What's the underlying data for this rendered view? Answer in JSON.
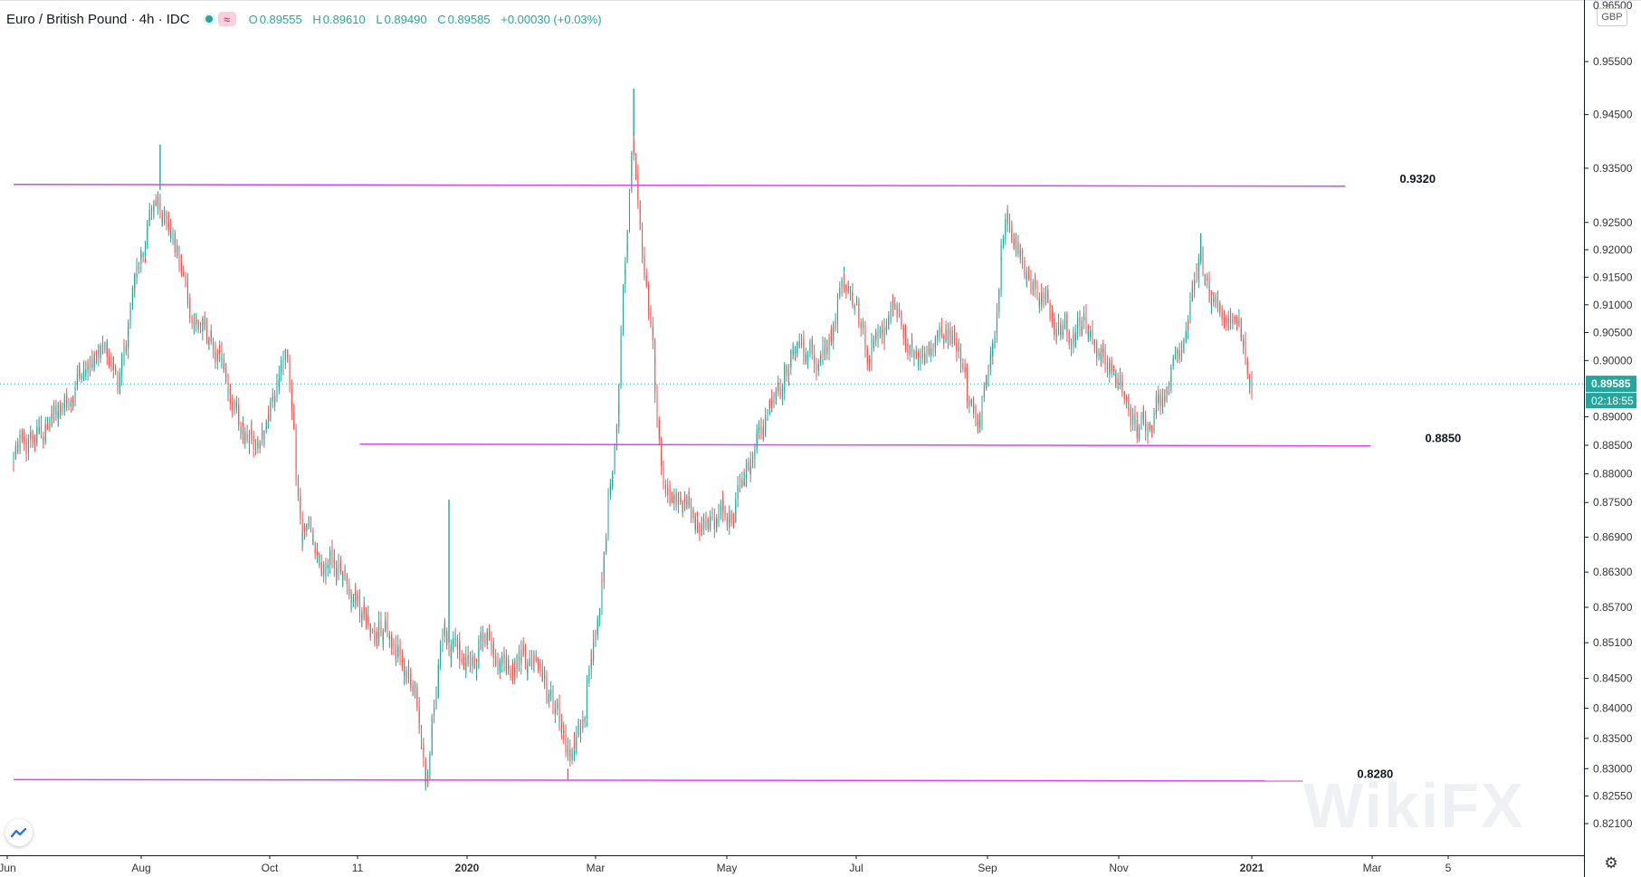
{
  "legend": {
    "title": "Euro / British Pound · 4h · IDC",
    "o_label": "O",
    "o_value": "0.89555",
    "h_label": "H",
    "h_value": "0.89610",
    "l_label": "L",
    "l_value": "0.89490",
    "c_label": "C",
    "c_value": "0.89585",
    "change": "+0.00030 (+0.03%)",
    "wave_icon": "≈"
  },
  "currency_badge": "GBP",
  "watermark": "WikiFX",
  "colors": {
    "up": "#26a69a",
    "down": "#ef5350",
    "level_line": "#e040fb",
    "price_tag": "#26a69a",
    "axis_text": "#5d606b"
  },
  "chart_data": {
    "type": "candlestick",
    "symbol": "Euro / British Pound",
    "timeframe": "4h",
    "source": "IDC",
    "y_scale": "log",
    "ylim": [
      0.8175,
      0.966
    ],
    "y_ticks": [
      "0.95500",
      "0.94500",
      "0.93500",
      "0.92500",
      "0.92000",
      "0.91500",
      "0.91000",
      "0.90500",
      "0.90000",
      "0.89000",
      "0.88500",
      "0.88000",
      "0.87500",
      "0.86900",
      "0.86300",
      "0.85700",
      "0.85100",
      "0.84500",
      "0.84000",
      "0.83500",
      "0.83000",
      "0.82550",
      "0.82100"
    ],
    "y_tick_values": [
      0.955,
      0.945,
      0.935,
      0.925,
      0.92,
      0.915,
      0.91,
      0.905,
      0.9,
      0.89,
      0.885,
      0.88,
      0.875,
      0.869,
      0.863,
      0.857,
      0.851,
      0.845,
      0.84,
      0.835,
      0.83,
      0.8255,
      0.821
    ],
    "y_top_partial_label": "0.96500",
    "x_ticks": [
      "Jun",
      "Aug",
      "Oct",
      "11",
      "2020",
      "Mar",
      "May",
      "Jul",
      "Sep",
      "Nov",
      "2021",
      "Mar",
      "5"
    ],
    "x_tick_bold": [
      false,
      false,
      false,
      false,
      true,
      false,
      false,
      false,
      false,
      false,
      true,
      false,
      false
    ],
    "date_range": [
      "2019-06-01",
      "2021-01-04"
    ],
    "price_path": [
      [
        "2019-06-01",
        0.882
      ],
      [
        "2019-06-20",
        0.889
      ],
      [
        "2019-07-01",
        0.897
      ],
      [
        "2019-07-15",
        0.901
      ],
      [
        "2019-07-22",
        0.896
      ],
      [
        "2019-07-30",
        0.917
      ],
      [
        "2019-08-09",
        0.931
      ],
      [
        "2019-08-15",
        0.923
      ],
      [
        "2019-08-25",
        0.908
      ],
      [
        "2019-09-03",
        0.903
      ],
      [
        "2019-09-12",
        0.892
      ],
      [
        "2019-09-20",
        0.884
      ],
      [
        "2019-09-28",
        0.889
      ],
      [
        "2019-10-08",
        0.901
      ],
      [
        "2019-10-15",
        0.872
      ],
      [
        "2019-10-22",
        0.864
      ],
      [
        "2019-11-05",
        0.864
      ],
      [
        "2019-11-15",
        0.856
      ],
      [
        "2019-11-25",
        0.853
      ],
      [
        "2019-12-06",
        0.843
      ],
      [
        "2019-12-13",
        0.829
      ],
      [
        "2019-12-20",
        0.851
      ],
      [
        "2020-01-01",
        0.849
      ],
      [
        "2020-01-10",
        0.852
      ],
      [
        "2020-01-22",
        0.845
      ],
      [
        "2020-02-03",
        0.849
      ],
      [
        "2020-02-10",
        0.84
      ],
      [
        "2020-02-18",
        0.83
      ],
      [
        "2020-02-25",
        0.836
      ],
      [
        "2020-03-05",
        0.863
      ],
      [
        "2020-03-12",
        0.889
      ],
      [
        "2020-03-19",
        0.941
      ],
      [
        "2020-03-25",
        0.913
      ],
      [
        "2020-04-03",
        0.879
      ],
      [
        "2020-04-12",
        0.876
      ],
      [
        "2020-04-20",
        0.872
      ],
      [
        "2020-05-01",
        0.873
      ],
      [
        "2020-05-12",
        0.882
      ],
      [
        "2020-05-25",
        0.894
      ],
      [
        "2020-06-05",
        0.902
      ],
      [
        "2020-06-15",
        0.902
      ],
      [
        "2020-06-29",
        0.913
      ],
      [
        "2020-07-08",
        0.9
      ],
      [
        "2020-07-20",
        0.91
      ],
      [
        "2020-08-01",
        0.899
      ],
      [
        "2020-08-15",
        0.906
      ],
      [
        "2020-08-28",
        0.89
      ],
      [
        "2020-09-04",
        0.901
      ],
      [
        "2020-09-11",
        0.925
      ],
      [
        "2020-09-22",
        0.914
      ],
      [
        "2020-10-05",
        0.906
      ],
      [
        "2020-10-18",
        0.907
      ],
      [
        "2020-10-30",
        0.899
      ],
      [
        "2020-11-12",
        0.887
      ],
      [
        "2020-11-25",
        0.896
      ],
      [
        "2020-12-03",
        0.905
      ],
      [
        "2020-12-11",
        0.918
      ],
      [
        "2020-12-18",
        0.907
      ],
      [
        "2020-12-29",
        0.909
      ],
      [
        "2021-01-04",
        0.8958
      ]
    ],
    "spikes": [
      {
        "date": "2019-08-09",
        "high": 0.9394
      },
      {
        "date": "2019-12-13",
        "low": 0.8277
      },
      {
        "date": "2019-12-23",
        "high": 0.8755
      },
      {
        "date": "2020-02-17",
        "low": 0.8282
      },
      {
        "date": "2020-03-19",
        "high": 0.9499
      },
      {
        "date": "2020-12-11",
        "high": 0.923
      }
    ],
    "horizontal_levels": [
      {
        "label": "0.9320",
        "value": 0.932,
        "from": "2019-06-01",
        "to": "2021-02-17"
      },
      {
        "label": "0.8850",
        "value": 0.8852,
        "from": "2019-11-11",
        "to": "2021-03-01"
      },
      {
        "label": "0.8280",
        "value": 0.8282,
        "from": "2019-06-01",
        "to": "2021-01-28"
      }
    ],
    "last_price": "0.89585",
    "last_price_value": 0.89585,
    "countdown": "02:18:55"
  }
}
